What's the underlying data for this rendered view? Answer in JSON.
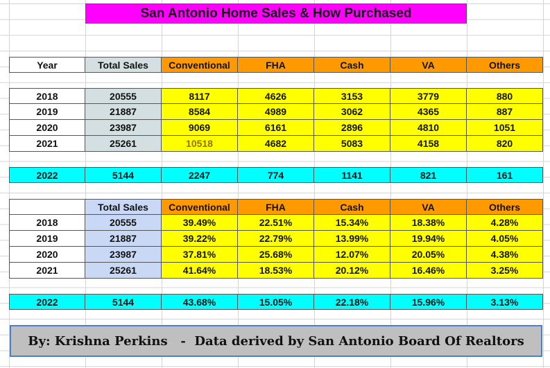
{
  "title": "San Antonio Home Sales & How Purchased",
  "table1": {
    "headers": [
      "Year",
      "Total Sales",
      "Conventional",
      "FHA",
      "Cash",
      "VA",
      "Others"
    ],
    "rows": [
      [
        "2018",
        "20555",
        "8117",
        "4626",
        "3153",
        "3779",
        "880"
      ],
      [
        "2019",
        "21887",
        "8584",
        "4989",
        "3062",
        "4365",
        "887"
      ],
      [
        "2020",
        "23987",
        "9069",
        "6161",
        "2896",
        "4810",
        "1051"
      ],
      [
        "2021",
        "25261",
        "10518",
        "4682",
        "5083",
        "4158",
        "820"
      ]
    ],
    "ytd": [
      "2022",
      "5144",
      "2247",
      "774",
      "1141",
      "821",
      "161"
    ]
  },
  "table2": {
    "headers": [
      "",
      "Total Sales",
      "Conventional",
      "FHA",
      "Cash",
      "VA",
      "Others"
    ],
    "rows": [
      [
        "2018",
        "20555",
        "39.49%",
        "22.51%",
        "15.34%",
        "18.38%",
        "4.28%"
      ],
      [
        "2019",
        "21887",
        "39.22%",
        "22.79%",
        "13.99%",
        "19.94%",
        "4.05%"
      ],
      [
        "2020",
        "23987",
        "37.81%",
        "25.68%",
        "12.07%",
        "20.05%",
        "4.38%"
      ],
      [
        "2021",
        "25261",
        "41.64%",
        "18.53%",
        "20.12%",
        "16.46%",
        "3.25%"
      ]
    ],
    "ytd": [
      "2022",
      "5144",
      "43.68%",
      "15.05%",
      "22.18%",
      "15.96%",
      "3.13%"
    ]
  },
  "footer": "By: Krishna Perkins   -  Data derived by San Antonio Board Of Realtors",
  "colors": {
    "title_bg": "#ff00ff",
    "header_orange": "#ff9900",
    "data_yellow": "#ffff00",
    "ytd_cyan": "#00ffff",
    "total_col_gray": "#d3dfe0",
    "total_col_blue": "#c9d9f5",
    "footer_bg": "#bfbfbf",
    "footer_border": "#4a7fd0"
  }
}
